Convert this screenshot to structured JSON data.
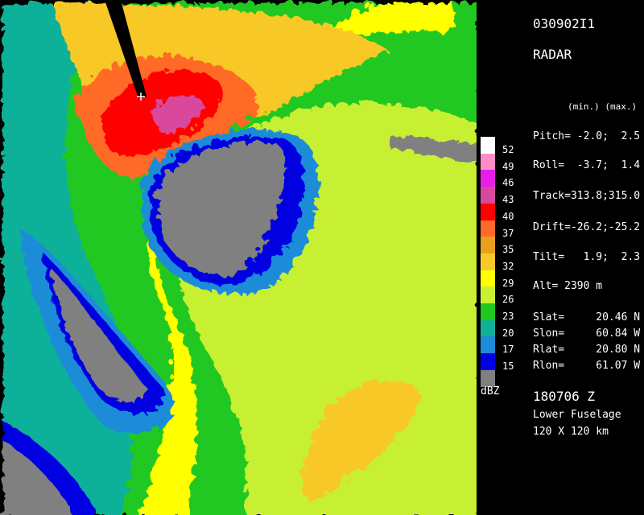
{
  "header": {
    "id": "030902I1",
    "product": "RADAR",
    "minmax": "(min.) (max.)"
  },
  "params": [
    "Pitch= -2.0;  2.5",
    "Roll=  -3.7;  1.4",
    "Track=313.8;315.0",
    "Drift=-26.2;-25.2",
    "Tilt=   1.9;  2.3",
    "Alt= 2390 m"
  ],
  "position": [
    "Slat=     20.46 N",
    "Slon=     60.84 W",
    "Rlat=     20.80 N",
    "Rlon=     61.07 W"
  ],
  "footer": {
    "time": "180706 Z",
    "antenna": "Lower Fuselage",
    "range": "120 X 120 km"
  },
  "legend": {
    "unit": "dBZ",
    "entries": [
      {
        "label": "52",
        "color": "#ffffff"
      },
      {
        "label": "49",
        "color": "#ff8ec8"
      },
      {
        "label": "46",
        "color": "#e81ee8"
      },
      {
        "label": "43",
        "color": "#d8489c"
      },
      {
        "label": "40",
        "color": "#ff0000"
      },
      {
        "label": "37",
        "color": "#ff6a28"
      },
      {
        "label": "35",
        "color": "#e8a01c"
      },
      {
        "label": "32",
        "color": "#f8c828"
      },
      {
        "label": "29",
        "color": "#ffff00"
      },
      {
        "label": "26",
        "color": "#c8f030"
      },
      {
        "label": "23",
        "color": "#20c820"
      },
      {
        "label": "20",
        "color": "#10b098"
      },
      {
        "label": "17",
        "color": "#1e8cd8"
      },
      {
        "label": "15",
        "color": "#0000e0"
      },
      {
        "label": null,
        "color": "#808080"
      }
    ]
  }
}
